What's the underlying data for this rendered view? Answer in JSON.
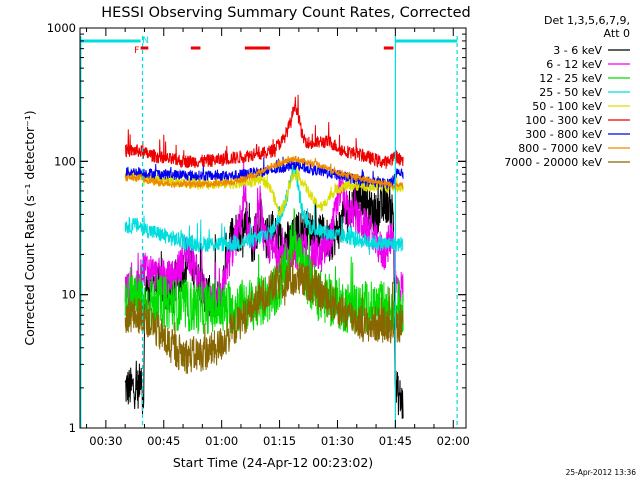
{
  "chart_data": {
    "type": "line",
    "title": "HESSI Observing Summary Count Rates, Corrected",
    "xlabel": "Start Time (24-Apr-12 00:23:02)",
    "ylabel": "Corrected Count Rate (s⁻¹ detector⁻¹)",
    "y_scale": "log",
    "ylim": [
      1,
      1000
    ],
    "xlim_minutes": [
      0.3,
      100.3
    ],
    "x_ticks": [
      {
        "m": 7,
        "label": "00:30"
      },
      {
        "m": 22,
        "label": "00:45"
      },
      {
        "m": 37,
        "label": "01:00"
      },
      {
        "m": 52,
        "label": "01:15"
      },
      {
        "m": 67,
        "label": "01:30"
      },
      {
        "m": 82,
        "label": "01:45"
      },
      {
        "m": 97,
        "label": "02:00"
      }
    ],
    "y_ticks": [
      {
        "v": 1,
        "label": "1"
      },
      {
        "v": 10,
        "label": "10"
      },
      {
        "v": 100,
        "label": "100"
      },
      {
        "v": 1000,
        "label": "1000"
      }
    ],
    "legend_header": [
      "Det 1,3,5,6,7,9,",
      "Att 0"
    ],
    "legend_placement": "right",
    "flags": {
      "color": "#00dddd",
      "day_segments": [
        [
          0.3,
          16.0
        ],
        [
          82.0,
          98.0
        ]
      ],
      "night_start": 16.5,
      "night_end": 82.0,
      "dashed_lines": [
        16.5,
        98.0
      ],
      "solid_lines": [
        0.5,
        82.0
      ],
      "F_marker": {
        "m": 15.0,
        "label": "F"
      },
      "N_marker": {
        "m": 17.3,
        "label": "N"
      },
      "red_segments": [
        [
          16.0,
          18.0
        ],
        [
          29.0,
          31.5
        ],
        [
          43.0,
          49.5
        ],
        [
          79.0,
          81.5
        ]
      ],
      "red_color": "#ee0000"
    },
    "series": [
      {
        "name": "3 - 6 keV",
        "color": "#000000",
        "noise": 0.16,
        "spikes": 0.55,
        "points": [
          [
            12,
            2
          ],
          [
            15.6,
            2
          ],
          [
            16.2,
            3
          ],
          [
            16.7,
            1.2
          ],
          [
            17.2,
            12
          ],
          [
            20,
            12
          ],
          [
            24,
            10
          ],
          [
            28,
            18
          ],
          [
            30,
            16
          ],
          [
            32,
            11
          ],
          [
            35,
            9
          ],
          [
            37,
            9
          ],
          [
            38,
            20
          ],
          [
            40,
            30
          ],
          [
            42,
            30
          ],
          [
            44,
            40
          ],
          [
            45,
            22
          ],
          [
            46,
            30
          ],
          [
            47,
            40
          ],
          [
            48,
            25
          ],
          [
            50,
            30
          ],
          [
            52,
            25
          ],
          [
            55,
            25
          ],
          [
            57,
            30
          ],
          [
            60,
            30
          ],
          [
            63,
            28
          ],
          [
            65,
            25
          ],
          [
            67,
            30
          ],
          [
            69,
            38
          ],
          [
            71,
            50
          ],
          [
            73,
            60
          ],
          [
            75,
            45
          ],
          [
            77,
            40
          ],
          [
            80,
            50
          ],
          [
            81.5,
            40
          ],
          [
            82,
            2
          ],
          [
            84,
            1.5
          ]
        ]
      },
      {
        "name": "6 - 12 keV",
        "color": "#ee00ee",
        "noise": 0.14,
        "spikes": 0.45,
        "points": [
          [
            12,
            11
          ],
          [
            15.6,
            11
          ],
          [
            16.5,
            16
          ],
          [
            17.5,
            16
          ],
          [
            20,
            14
          ],
          [
            24,
            13
          ],
          [
            26,
            16
          ],
          [
            28,
            22
          ],
          [
            30,
            16
          ],
          [
            32,
            11
          ],
          [
            35,
            9
          ],
          [
            37,
            9
          ],
          [
            38,
            15
          ],
          [
            41,
            28
          ],
          [
            43,
            50
          ],
          [
            44,
            25
          ],
          [
            46,
            30
          ],
          [
            47,
            50
          ],
          [
            48,
            25
          ],
          [
            50,
            22
          ],
          [
            52,
            20
          ],
          [
            55,
            20
          ],
          [
            58,
            22
          ],
          [
            60,
            20
          ],
          [
            63,
            20
          ],
          [
            65,
            25
          ],
          [
            66,
            35
          ],
          [
            68,
            70
          ],
          [
            69,
            45
          ],
          [
            71,
            40
          ],
          [
            73,
            35
          ],
          [
            75,
            30
          ],
          [
            77,
            25
          ],
          [
            79,
            20
          ],
          [
            81.5,
            30
          ],
          [
            82,
            12
          ],
          [
            84,
            11
          ]
        ]
      },
      {
        "name": "12 - 25 keV",
        "color": "#00dd00",
        "noise": 0.2,
        "spikes": 0.35,
        "points": [
          [
            12,
            9
          ],
          [
            15.6,
            9
          ],
          [
            17,
            8.5
          ],
          [
            20,
            9
          ],
          [
            25,
            8.5
          ],
          [
            30,
            8
          ],
          [
            35,
            8
          ],
          [
            40,
            8
          ],
          [
            43,
            8.5
          ],
          [
            46,
            8.5
          ],
          [
            48,
            9
          ],
          [
            50,
            10
          ],
          [
            52,
            12
          ],
          [
            54,
            16
          ],
          [
            55,
            22
          ],
          [
            56,
            30
          ],
          [
            57,
            22
          ],
          [
            58,
            16
          ],
          [
            60,
            12
          ],
          [
            62,
            10
          ],
          [
            65,
            9
          ],
          [
            70,
            8
          ],
          [
            75,
            8
          ],
          [
            80,
            8
          ],
          [
            81.5,
            8
          ],
          [
            82,
            8
          ],
          [
            84,
            8
          ]
        ]
      },
      {
        "name": "25 - 50 keV",
        "color": "#00dddd",
        "noise": 0.06,
        "spikes": 0.2,
        "points": [
          [
            12,
            33
          ],
          [
            15.6,
            33
          ],
          [
            17,
            31
          ],
          [
            20,
            29
          ],
          [
            25,
            26
          ],
          [
            30,
            24
          ],
          [
            35,
            24
          ],
          [
            40,
            24
          ],
          [
            43,
            25
          ],
          [
            46,
            26
          ],
          [
            48,
            28
          ],
          [
            50,
            30
          ],
          [
            52,
            38
          ],
          [
            54,
            55
          ],
          [
            55,
            80
          ],
          [
            56,
            90
          ],
          [
            57,
            60
          ],
          [
            58,
            40
          ],
          [
            60,
            32
          ],
          [
            63,
            30
          ],
          [
            66,
            28
          ],
          [
            70,
            27
          ],
          [
            75,
            25
          ],
          [
            80,
            24
          ],
          [
            81.5,
            24
          ],
          [
            82,
            24
          ],
          [
            84,
            24
          ]
        ]
      },
      {
        "name": "50 - 100 keV",
        "color": "#dddd00",
        "noise": 0.04,
        "spikes": 0.1,
        "points": [
          [
            12,
            78
          ],
          [
            15.6,
            78
          ],
          [
            17,
            75
          ],
          [
            20,
            72
          ],
          [
            25,
            70
          ],
          [
            30,
            68
          ],
          [
            35,
            68
          ],
          [
            40,
            68
          ],
          [
            44,
            70
          ],
          [
            48,
            72
          ],
          [
            50,
            60
          ],
          [
            52,
            40
          ],
          [
            54,
            55
          ],
          [
            55,
            75
          ],
          [
            56,
            80
          ],
          [
            58,
            70
          ],
          [
            61,
            50
          ],
          [
            63,
            45
          ],
          [
            65,
            55
          ],
          [
            67,
            62
          ],
          [
            70,
            66
          ],
          [
            75,
            65
          ],
          [
            80,
            64
          ],
          [
            81.5,
            64
          ],
          [
            82,
            64
          ],
          [
            84,
            64
          ]
        ]
      },
      {
        "name": "100 - 300 keV",
        "color": "#ee0000",
        "noise": 0.05,
        "spikes": 0.2,
        "points": [
          [
            12,
            120
          ],
          [
            15.6,
            120
          ],
          [
            17,
            115
          ],
          [
            22,
            105
          ],
          [
            27,
            100
          ],
          [
            32,
            100
          ],
          [
            37,
            103
          ],
          [
            42,
            108
          ],
          [
            45,
            112
          ],
          [
            46,
            125
          ],
          [
            47,
            112
          ],
          [
            50,
            120
          ],
          [
            53,
            145
          ],
          [
            55,
            200
          ],
          [
            56,
            280
          ],
          [
            57,
            210
          ],
          [
            58,
            150
          ],
          [
            60,
            135
          ],
          [
            63,
            140
          ],
          [
            65,
            140
          ],
          [
            68,
            122
          ],
          [
            73,
            112
          ],
          [
            78,
            100
          ],
          [
            80,
            98
          ],
          [
            81.5,
            108
          ],
          [
            82,
            110
          ],
          [
            84,
            100
          ]
        ]
      },
      {
        "name": "300 - 800 keV",
        "color": "#0000ee",
        "noise": 0.04,
        "spikes": 0.1,
        "points": [
          [
            12,
            83
          ],
          [
            15.6,
            83
          ],
          [
            17,
            82
          ],
          [
            22,
            80
          ],
          [
            30,
            78
          ],
          [
            40,
            78
          ],
          [
            45,
            82
          ],
          [
            50,
            85
          ],
          [
            54,
            92
          ],
          [
            56,
            95
          ],
          [
            58,
            90
          ],
          [
            62,
            85
          ],
          [
            66,
            80
          ],
          [
            70,
            75
          ],
          [
            75,
            70
          ],
          [
            80,
            68
          ],
          [
            81.5,
            72
          ],
          [
            82,
            82
          ],
          [
            84,
            80
          ]
        ]
      },
      {
        "name": "800 - 7000 keV",
        "color": "#ee8800",
        "noise": 0.025,
        "spikes": 0.05,
        "points": [
          [
            12,
            75
          ],
          [
            15.6,
            75
          ],
          [
            17,
            73
          ],
          [
            22,
            68
          ],
          [
            28,
            67
          ],
          [
            35,
            68
          ],
          [
            40,
            70
          ],
          [
            45,
            78
          ],
          [
            50,
            92
          ],
          [
            54,
            100
          ],
          [
            56,
            105
          ],
          [
            58,
            100
          ],
          [
            62,
            95
          ],
          [
            66,
            85
          ],
          [
            70,
            78
          ],
          [
            75,
            72
          ],
          [
            80,
            68
          ],
          [
            81.5,
            66
          ],
          [
            82,
            66
          ],
          [
            84,
            66
          ]
        ]
      },
      {
        "name": "7000 - 20000 keV",
        "color": "#886600",
        "noise": 0.14,
        "spikes": 0.3,
        "points": [
          [
            12,
            7
          ],
          [
            15.6,
            7
          ],
          [
            17,
            7
          ],
          [
            20,
            5.5
          ],
          [
            24,
            4
          ],
          [
            28,
            3.5
          ],
          [
            32,
            3.6
          ],
          [
            36,
            4
          ],
          [
            40,
            5.5
          ],
          [
            44,
            7.5
          ],
          [
            48,
            10
          ],
          [
            52,
            12.5
          ],
          [
            55,
            13
          ],
          [
            57,
            13
          ],
          [
            60,
            12
          ],
          [
            63,
            10
          ],
          [
            66,
            8.5
          ],
          [
            70,
            7
          ],
          [
            74,
            6
          ],
          [
            78,
            6
          ],
          [
            81.5,
            6
          ],
          [
            82,
            6
          ],
          [
            84,
            6
          ]
        ]
      }
    ]
  },
  "footer": {
    "date_stamp": "25-Apr-2012 13:36"
  }
}
